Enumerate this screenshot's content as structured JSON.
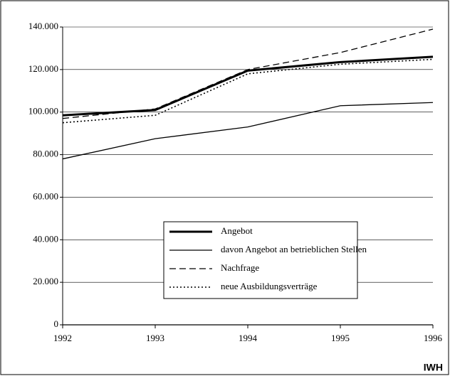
{
  "chart_data": {
    "type": "line",
    "x": [
      1992,
      1993,
      1994,
      1995,
      1996
    ],
    "xlim": [
      1992,
      1996
    ],
    "xticks": [
      1992,
      1993,
      1994,
      1995,
      1996
    ],
    "ylim": [
      0,
      140000
    ],
    "yticks": [
      0,
      {
        "value": 20000,
        "label": "20.000"
      },
      {
        "value": 40000,
        "label": "40.000"
      },
      {
        "value": 60000,
        "label": "60.000"
      },
      {
        "value": 80000,
        "label": "80.000"
      },
      {
        "value": 100000,
        "label": "100.000"
      },
      {
        "value": 120000,
        "label": "120.000"
      },
      {
        "value": 140000,
        "label": "140.000"
      }
    ],
    "grid": true,
    "legend_position": "lower right",
    "annotation": "IWH",
    "series": [
      {
        "name": "Angebot",
        "color": "#000000",
        "style": "thick",
        "values": [
          98500,
          101000,
          119500,
          123500,
          126000
        ]
      },
      {
        "name": "davon Angebot an betrieblichen Stellen",
        "color": "#000000",
        "style": "solid",
        "values": [
          78000,
          87500,
          93000,
          103000,
          104500
        ]
      },
      {
        "name": "Nachfrage",
        "color": "#000000",
        "style": "dashed",
        "values": [
          97000,
          101500,
          120000,
          128000,
          139000
        ]
      },
      {
        "name": "neue Ausbildungsverträge",
        "color": "#000000",
        "style": "dotted",
        "values": [
          95000,
          98500,
          118000,
          122500,
          124800
        ]
      }
    ]
  }
}
